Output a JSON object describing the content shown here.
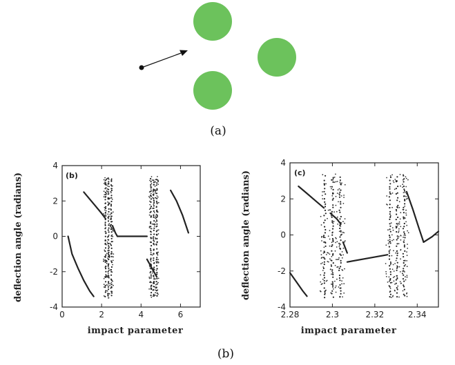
{
  "captions": {
    "a": "(a)",
    "b": "(b)"
  },
  "scatterer": {
    "disc_color": "#6cc25c",
    "arrow_color": "#111111",
    "disc_count": 3
  },
  "chart_data": [
    {
      "type": "scatter",
      "panel_label": "(b)",
      "xlabel": "impact parameter",
      "ylabel": "deflection angle (radians)",
      "xlim": [
        0,
        7
      ],
      "ylim": [
        -4,
        4
      ],
      "xticks": [
        "0",
        "2",
        "4",
        "6"
      ],
      "yticks": [
        "4",
        "2",
        "0",
        "-2",
        "-4"
      ],
      "curves": [
        {
          "x": [
            0.3,
            0.5,
            0.8,
            1.1,
            1.4,
            1.6
          ],
          "y": [
            0.0,
            -1.0,
            -1.8,
            -2.5,
            -3.1,
            -3.4
          ]
        },
        {
          "x": [
            1.1,
            1.4,
            1.7,
            2.0,
            2.2
          ],
          "y": [
            2.5,
            2.1,
            1.7,
            1.3,
            1.0
          ]
        },
        {
          "x": [
            2.55,
            2.7,
            2.8
          ],
          "y": [
            0.6,
            0.2,
            0.0
          ]
        },
        {
          "x": [
            2.8,
            4.3
          ],
          "y": [
            0.0,
            0.0
          ]
        },
        {
          "x": [
            4.3,
            4.5,
            4.7,
            4.8
          ],
          "y": [
            -1.3,
            -1.7,
            -2.1,
            -2.3
          ]
        },
        {
          "x": [
            5.5,
            5.8,
            6.1,
            6.4
          ],
          "y": [
            2.6,
            2.0,
            1.2,
            0.2
          ]
        }
      ],
      "chaotic_bands": [
        [
          2.1,
          2.6
        ],
        [
          4.4,
          4.9
        ]
      ]
    },
    {
      "type": "scatter",
      "panel_label": "(c)",
      "xlabel": "impact parameter",
      "ylabel": "deflection angle (radians)",
      "xlim": [
        2.28,
        2.35
      ],
      "ylim": [
        -4,
        4
      ],
      "xticks": [
        "2.28",
        "2.3",
        "2.32",
        "2.34"
      ],
      "yticks": [
        "4",
        "2",
        "0",
        "-2",
        "-4"
      ],
      "curves": [
        {
          "x": [
            2.28,
            2.283,
            2.286,
            2.288
          ],
          "y": [
            -2.1,
            -2.6,
            -3.1,
            -3.4
          ]
        },
        {
          "x": [
            2.284,
            2.288,
            2.292,
            2.296
          ],
          "y": [
            2.7,
            2.3,
            1.9,
            1.5
          ]
        },
        {
          "x": [
            2.299,
            2.302,
            2.304
          ],
          "y": [
            1.2,
            0.9,
            0.6
          ]
        },
        {
          "x": [
            2.305,
            2.307
          ],
          "y": [
            -0.4,
            -1.0
          ]
        },
        {
          "x": [
            2.307,
            2.326
          ],
          "y": [
            -1.5,
            -1.1
          ]
        },
        {
          "x": [
            2.335,
            2.338,
            2.341,
            2.343
          ],
          "y": [
            2.4,
            1.4,
            0.3,
            -0.4
          ]
        },
        {
          "x": [
            2.343,
            2.347,
            2.35
          ],
          "y": [
            -0.4,
            -0.1,
            0.2
          ]
        }
      ],
      "chaotic_bands": [
        [
          2.294,
          2.306
        ],
        [
          2.325,
          2.336
        ]
      ]
    }
  ]
}
